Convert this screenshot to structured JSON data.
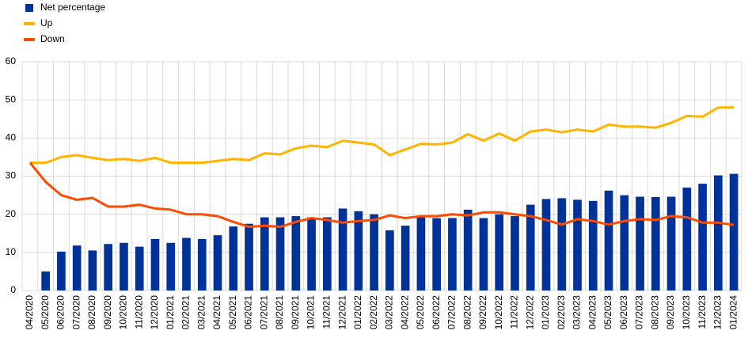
{
  "chart_data": {
    "type": "bar_line",
    "categories": [
      "04/2020",
      "05/2020",
      "06/2020",
      "07/2020",
      "08/2020",
      "09/2020",
      "10/2020",
      "11/2020",
      "12/2020",
      "01/2021",
      "02/2021",
      "03/2021",
      "04/2021",
      "05/2021",
      "06/2021",
      "07/2021",
      "08/2021",
      "09/2021",
      "10/2021",
      "11/2021",
      "12/2021",
      "01/2022",
      "02/2022",
      "03/2022",
      "04/2022",
      "05/2022",
      "06/2022",
      "07/2022",
      "08/2022",
      "09/2022",
      "10/2022",
      "11/2022",
      "12/2022",
      "01/2023",
      "02/2023",
      "03/2023",
      "04/2023",
      "05/2023",
      "06/2023",
      "07/2023",
      "08/2023",
      "09/2023",
      "10/2023",
      "11/2023",
      "12/2023",
      "01/2024"
    ],
    "series": [
      {
        "name": "Net percentage",
        "kind": "bar",
        "color": "#003299",
        "values": [
          null,
          5,
          10.2,
          11.8,
          10.5,
          12.2,
          12.5,
          11.5,
          13.5,
          12.5,
          13.8,
          13.5,
          14.5,
          16.8,
          17.5,
          19.2,
          19.2,
          19.5,
          19.2,
          19.2,
          21.5,
          20.8,
          20,
          15.8,
          17,
          19.5,
          19,
          19,
          21.2,
          19,
          20,
          19.5,
          22.5,
          24,
          24.2,
          23.8,
          23.5,
          26.2,
          25,
          24.6,
          24.5,
          24.6,
          27,
          28,
          30.2,
          30.6
        ]
      },
      {
        "name": "Up",
        "kind": "line",
        "color": "#ffb400",
        "values": [
          33.5,
          33.5,
          35,
          35.5,
          34.8,
          34.2,
          34.5,
          34,
          34.8,
          33.5,
          33.5,
          33.5,
          34,
          34.5,
          34.2,
          36,
          35.7,
          37.3,
          38,
          37.6,
          39.3,
          38.8,
          38.3,
          35.5,
          37,
          38.5,
          38.3,
          38.8,
          41,
          39.3,
          41.2,
          39.3,
          41.7,
          42.2,
          41.5,
          42.2,
          41.7,
          43.5,
          43,
          43,
          42.7,
          44,
          45.8,
          45.6,
          48,
          48
        ]
      },
      {
        "name": "Down",
        "kind": "line",
        "color": "#ff4b00",
        "values": [
          33.5,
          28.5,
          25,
          23.8,
          24.3,
          22,
          22,
          22.5,
          21.5,
          21.2,
          20,
          20,
          19.5,
          18,
          16.7,
          17,
          16.7,
          18,
          19,
          18.5,
          17.8,
          18.2,
          18.5,
          19.7,
          19,
          19.5,
          19.5,
          20,
          19.7,
          20.5,
          20.5,
          20,
          19.5,
          18.5,
          17.3,
          18.7,
          18.2,
          17.3,
          18.2,
          18.7,
          18.5,
          19.5,
          19.2,
          17.8,
          17.8,
          17.2
        ]
      }
    ],
    "ylim": [
      0,
      60
    ],
    "yticks": [
      0,
      10,
      20,
      30,
      40,
      50,
      60
    ],
    "grid": true,
    "legend": "top-left"
  }
}
